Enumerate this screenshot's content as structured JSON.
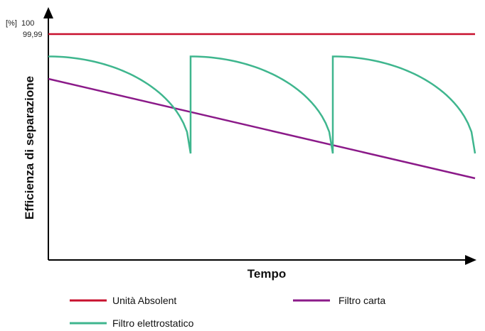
{
  "chart_data": {
    "type": "line",
    "xlabel": "Tempo",
    "ylabel": "Efficienza di separazione",
    "y_unit_label": "[%]",
    "y_ticks": [
      "100",
      "99,99"
    ],
    "ylim": [
      0,
      100
    ],
    "xlim": [
      0,
      3
    ],
    "legend_placement": "bottom",
    "grid": false,
    "series": [
      {
        "name": "Unità Absolent",
        "color": "#c8102e",
        "x": [
          0,
          3
        ],
        "y": [
          99.99,
          99.99
        ]
      },
      {
        "name": "Filtro carta",
        "color": "#8b1a89",
        "x": [
          0,
          3
        ],
        "y": [
          82,
          42
        ]
      },
      {
        "name": "Filtro elettrostatico",
        "color": "#3fb68e",
        "x": [
          0,
          0.2,
          0.4,
          0.6,
          0.7,
          0.8,
          0.9,
          0.95,
          1.0,
          1.0,
          1.2,
          1.4,
          1.6,
          1.7,
          1.8,
          1.9,
          1.95,
          2.0,
          2.0,
          2.2,
          2.4,
          2.6,
          2.7,
          2.8,
          2.9,
          2.95,
          3.0
        ],
        "y": [
          91,
          90.3,
          88.1,
          84.4,
          81.8,
          78.6,
          73.8,
          70.3,
          52,
          91,
          90.3,
          88.1,
          84.4,
          81.8,
          78.6,
          73.8,
          70.3,
          52,
          91,
          90.3,
          88.1,
          84.4,
          81.8,
          78.6,
          73.8,
          70.3,
          52
        ]
      }
    ]
  }
}
